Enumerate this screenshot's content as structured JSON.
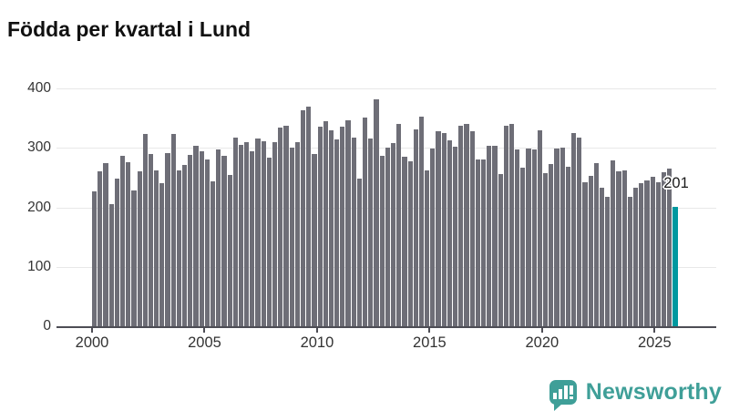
{
  "title": "Födda per kvartal i Lund",
  "logo": {
    "text": "Newsworthy",
    "icon": "bar-chart-speech-bubble",
    "color": "#3f9f98"
  },
  "colors": {
    "bar": "#6e6e77",
    "highlight": "#00989f",
    "axis": "#4d4d55",
    "grid": "#e8e8e8",
    "label": "#333333"
  },
  "chart_data": {
    "type": "bar",
    "title": "Födda per kvartal i Lund",
    "xlabel": "",
    "ylabel": "",
    "ylim": [
      0,
      400
    ],
    "yticks": [
      0,
      100,
      200,
      300,
      400
    ],
    "xticks": [
      "2000",
      "2005",
      "2010",
      "2015",
      "2020",
      "2025"
    ],
    "grid": "horizontal",
    "legend": "none",
    "highlight_index": 103,
    "annotation": {
      "text": "201",
      "index": 103
    },
    "categories": [
      "2000 Q1",
      "2000 Q2",
      "2000 Q3",
      "2000 Q4",
      "2001 Q1",
      "2001 Q2",
      "2001 Q3",
      "2001 Q4",
      "2002 Q1",
      "2002 Q2",
      "2002 Q3",
      "2002 Q4",
      "2003 Q1",
      "2003 Q2",
      "2003 Q3",
      "2003 Q4",
      "2004 Q1",
      "2004 Q2",
      "2004 Q3",
      "2004 Q4",
      "2005 Q1",
      "2005 Q2",
      "2005 Q3",
      "2005 Q4",
      "2006 Q1",
      "2006 Q2",
      "2006 Q3",
      "2006 Q4",
      "2007 Q1",
      "2007 Q2",
      "2007 Q3",
      "2007 Q4",
      "2008 Q1",
      "2008 Q2",
      "2008 Q3",
      "2008 Q4",
      "2009 Q1",
      "2009 Q2",
      "2009 Q3",
      "2009 Q4",
      "2010 Q1",
      "2010 Q2",
      "2010 Q3",
      "2010 Q4",
      "2011 Q1",
      "2011 Q2",
      "2011 Q3",
      "2011 Q4",
      "2012 Q1",
      "2012 Q2",
      "2012 Q3",
      "2012 Q4",
      "2013 Q1",
      "2013 Q2",
      "2013 Q3",
      "2013 Q4",
      "2014 Q1",
      "2014 Q2",
      "2014 Q3",
      "2014 Q4",
      "2015 Q1",
      "2015 Q2",
      "2015 Q3",
      "2015 Q4",
      "2016 Q1",
      "2016 Q2",
      "2016 Q3",
      "2016 Q4",
      "2017 Q1",
      "2017 Q2",
      "2017 Q3",
      "2017 Q4",
      "2018 Q1",
      "2018 Q2",
      "2018 Q3",
      "2018 Q4",
      "2019 Q1",
      "2019 Q2",
      "2019 Q3",
      "2019 Q4",
      "2020 Q1",
      "2020 Q2",
      "2020 Q3",
      "2020 Q4",
      "2021 Q1",
      "2021 Q2",
      "2021 Q3",
      "2021 Q4",
      "2022 Q1",
      "2022 Q2",
      "2022 Q3",
      "2022 Q4",
      "2023 Q1",
      "2023 Q2",
      "2023 Q3",
      "2023 Q4",
      "2024 Q1",
      "2024 Q2",
      "2024 Q3",
      "2024 Q4",
      "2025 Q1",
      "2025 Q2",
      "2025 Q3",
      "2025 Q4"
    ],
    "values": [
      227,
      261,
      275,
      206,
      249,
      286,
      276,
      229,
      260,
      324,
      290,
      262,
      240,
      291,
      324,
      262,
      272,
      288,
      304,
      295,
      280,
      244,
      297,
      287,
      254,
      318,
      305,
      310,
      295,
      316,
      311,
      284,
      309,
      334,
      337,
      300,
      309,
      363,
      370,
      289,
      336,
      345,
      330,
      314,
      336,
      346,
      317,
      248,
      351,
      316,
      382,
      286,
      300,
      308,
      341,
      285,
      277,
      331,
      353,
      262,
      299,
      328,
      325,
      312,
      302,
      338,
      340,
      328,
      280,
      280,
      303,
      303,
      256,
      338,
      340,
      297,
      266,
      299,
      298,
      329,
      257,
      273,
      299,
      301,
      269,
      325,
      318,
      242,
      253,
      274,
      233,
      217,
      279,
      261,
      262,
      217,
      233,
      240,
      246,
      252,
      242,
      259,
      265,
      201
    ]
  }
}
